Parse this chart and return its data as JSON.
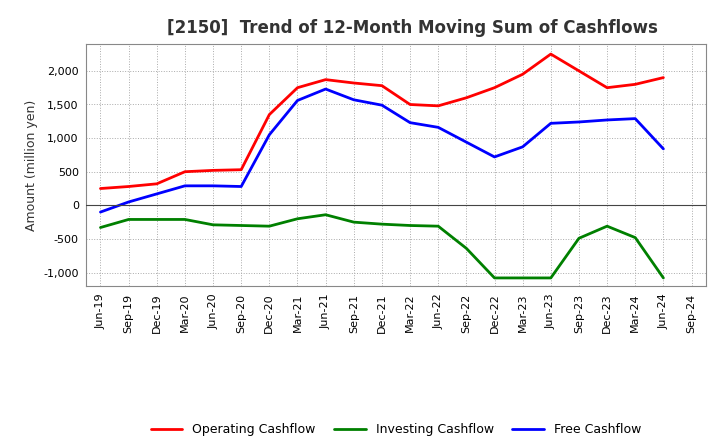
{
  "title": "[2150]  Trend of 12-Month Moving Sum of Cashflows",
  "ylabel": "Amount (million yen)",
  "background_color": "#ffffff",
  "plot_bg_color": "#ffffff",
  "grid_color": "#aaaaaa",
  "ylim": [
    -1200,
    2400
  ],
  "yticks": [
    -1000,
    -500,
    0,
    500,
    1000,
    1500,
    2000
  ],
  "labels": [
    "Jun-19",
    "Sep-19",
    "Dec-19",
    "Mar-20",
    "Jun-20",
    "Sep-20",
    "Dec-20",
    "Mar-21",
    "Jun-21",
    "Sep-21",
    "Dec-21",
    "Mar-22",
    "Jun-22",
    "Sep-22",
    "Dec-22",
    "Mar-23",
    "Jun-23",
    "Sep-23",
    "Dec-23",
    "Mar-24",
    "Jun-24",
    "Sep-24"
  ],
  "operating": [
    250,
    280,
    320,
    500,
    520,
    530,
    1350,
    1750,
    1870,
    1820,
    1780,
    1500,
    1480,
    1600,
    1750,
    1950,
    2250,
    2000,
    1750,
    1800,
    1900,
    null
  ],
  "investing": [
    -330,
    -210,
    -210,
    -210,
    -290,
    -300,
    -310,
    -200,
    -140,
    -250,
    -280,
    -300,
    -310,
    -640,
    -1080,
    -1080,
    -1080,
    -490,
    -310,
    -480,
    -1080,
    null
  ],
  "free": [
    -100,
    50,
    170,
    290,
    290,
    280,
    1050,
    1560,
    1730,
    1570,
    1490,
    1230,
    1160,
    940,
    720,
    870,
    1220,
    1240,
    1270,
    1290,
    840,
    null
  ],
  "line_width": 2.0,
  "operating_color": "#ff0000",
  "investing_color": "#008000",
  "free_color": "#0000ff",
  "legend_labels": [
    "Operating Cashflow",
    "Investing Cashflow",
    "Free Cashflow"
  ],
  "title_color": "#333333",
  "title_fontsize": 12,
  "tick_fontsize": 8,
  "ylabel_fontsize": 9
}
